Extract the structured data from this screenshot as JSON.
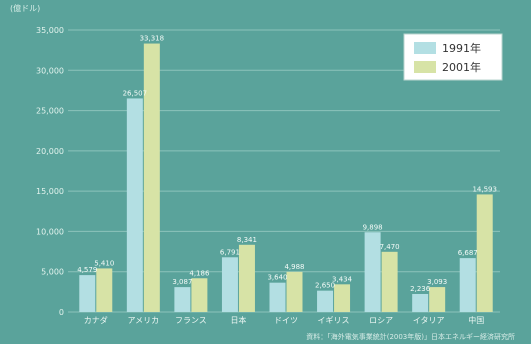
{
  "colors": {
    "background": "#5aa39b",
    "series_1991": "#b3dfe3",
    "series_2001": "#d7e3a6",
    "grid": "#8cc3bb",
    "legend_bg": "#ffffff"
  },
  "chart_data": {
    "type": "bar",
    "title": "",
    "unit_label": "(億ドル)",
    "xlabel": "",
    "ylabel": "",
    "ylim": [
      0,
      35000
    ],
    "yticks": [
      0,
      5000,
      10000,
      15000,
      20000,
      25000,
      30000,
      35000
    ],
    "ytick_labels": [
      "0",
      "5,000",
      "10,000",
      "15,000",
      "20,000",
      "25,000",
      "30,000",
      "35,000"
    ],
    "grid": true,
    "legend_position": "top-right",
    "categories": [
      "カナダ",
      "アメリカ",
      "フランス",
      "日本",
      "ドイツ",
      "イギリス",
      "ロシア",
      "イタリア",
      "中国"
    ],
    "series": [
      {
        "name": "1991年",
        "values": [
          4579,
          26507,
          3087,
          6791,
          3640,
          2650,
          9898,
          2236,
          6687
        ],
        "labels": [
          "4,579",
          "26,507",
          "3,087",
          "6,791",
          "3,640",
          "2,650",
          "9,898",
          "2,236",
          "6,687"
        ]
      },
      {
        "name": "2001年",
        "values": [
          5410,
          33318,
          4186,
          8341,
          4988,
          3434,
          7470,
          3093,
          14593
        ],
        "labels": [
          "5,410",
          "33,318",
          "4,186",
          "8,341",
          "4,988",
          "3,434",
          "7,470",
          "3,093",
          "14,593"
        ]
      }
    ],
    "source": "資料：「海外電気事業統計(2003年版)」日本エネルギー経済研究所"
  }
}
